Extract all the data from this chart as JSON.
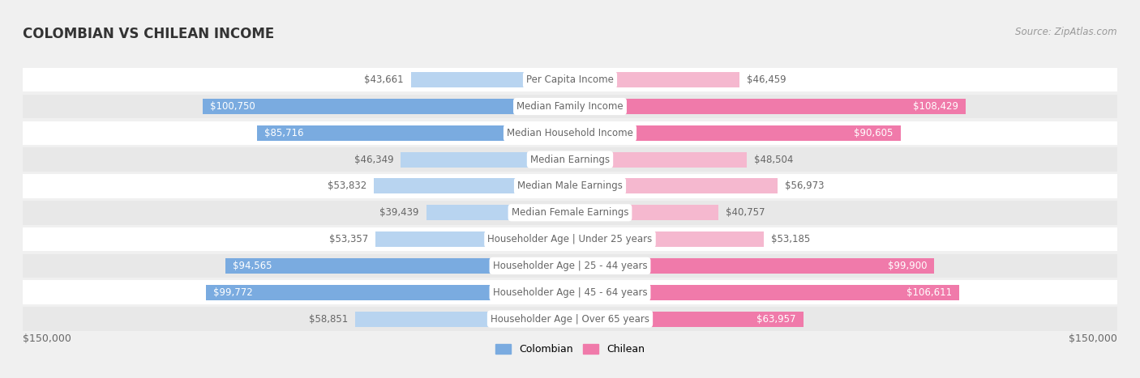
{
  "title": "COLOMBIAN VS CHILEAN INCOME",
  "source": "Source: ZipAtlas.com",
  "categories": [
    "Per Capita Income",
    "Median Family Income",
    "Median Household Income",
    "Median Earnings",
    "Median Male Earnings",
    "Median Female Earnings",
    "Householder Age | Under 25 years",
    "Householder Age | 25 - 44 years",
    "Householder Age | 45 - 64 years",
    "Householder Age | Over 65 years"
  ],
  "colombian_values": [
    43661,
    100750,
    85716,
    46349,
    53832,
    39439,
    53357,
    94565,
    99772,
    58851
  ],
  "chilean_values": [
    46459,
    108429,
    90605,
    48504,
    56973,
    40757,
    53185,
    99900,
    106611,
    63957
  ],
  "max_value": 150000,
  "colombian_color_full": "#7aabe0",
  "colombian_color_light": "#b8d4f0",
  "chilean_color_full": "#f07aaa",
  "chilean_color_light": "#f5b8cf",
  "label_color_dark": "#666666",
  "label_color_white": "#ffffff",
  "background_color": "#f0f0f0",
  "row_bg_even": "#ffffff",
  "row_bg_odd": "#e8e8e8",
  "title_color": "#333333",
  "source_color": "#999999",
  "legend_colombian": "Colombian",
  "legend_chilean": "Chilean",
  "col_label_inside_threshold": 0.42,
  "chi_label_inside_threshold": 0.42
}
